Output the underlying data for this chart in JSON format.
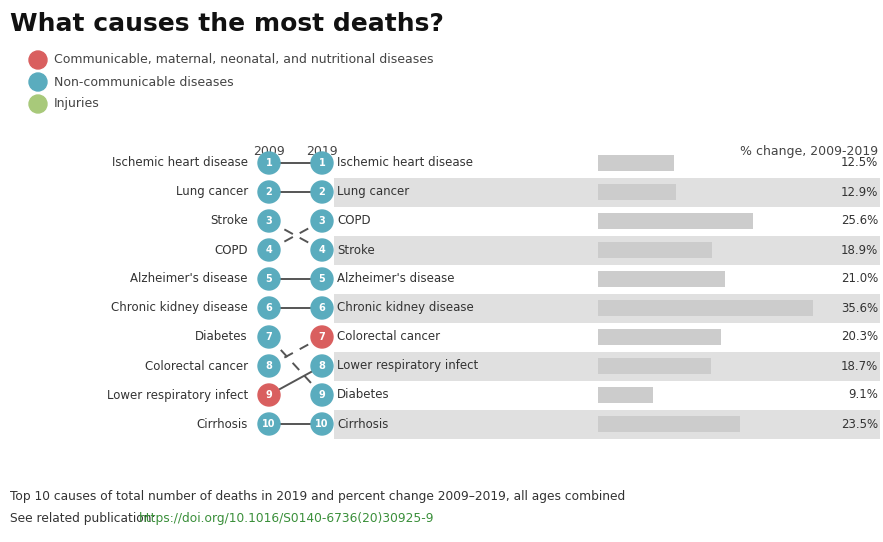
{
  "title": "What causes the most deaths?",
  "legend_items": [
    {
      "label": "Communicable, maternal, neonatal, and nutritional diseases",
      "color": "#d95f5f"
    },
    {
      "label": "Non-communicable diseases",
      "color": "#5aacbe"
    },
    {
      "label": "Injuries",
      "color": "#a8c97a"
    }
  ],
  "col_header_2009": "2009",
  "col_header_2019": "2019",
  "col_header_pct": "% change, 2009-2019",
  "left_labels_2009": [
    "Ischemic heart disease",
    "Lung cancer",
    "Stroke",
    "COPD",
    "Alzheimer's disease",
    "Chronic kidney disease",
    "Diabetes",
    "Colorectal cancer",
    "Lower respiratory infect",
    "Cirrhosis"
  ],
  "right_labels_2019": [
    "Ischemic heart disease",
    "Lung cancer",
    "COPD",
    "Stroke",
    "Alzheimer's disease",
    "Chronic kidney disease",
    "Colorectal cancer",
    "Lower respiratory infect",
    "Diabetes",
    "Cirrhosis"
  ],
  "pct_changes": [
    12.5,
    12.9,
    25.6,
    18.9,
    21.0,
    35.6,
    20.3,
    18.7,
    9.1,
    23.5
  ],
  "pct_labels": [
    "12.5%",
    "12.9%",
    "25.6%",
    "18.9%",
    "21.0%",
    "35.6%",
    "20.3%",
    "18.7%",
    "9.1%",
    "23.5%"
  ],
  "bubble_colors_2009": [
    "#5aacbe",
    "#5aacbe",
    "#5aacbe",
    "#5aacbe",
    "#5aacbe",
    "#5aacbe",
    "#5aacbe",
    "#5aacbe",
    "#d95f5f",
    "#5aacbe"
  ],
  "bubble_colors_2019": [
    "#5aacbe",
    "#5aacbe",
    "#5aacbe",
    "#5aacbe",
    "#5aacbe",
    "#5aacbe",
    "#5aacbe",
    "#d95f5f",
    "#5aacbe",
    "#5aacbe"
  ],
  "connections": [
    [
      0,
      0,
      "solid"
    ],
    [
      1,
      1,
      "solid"
    ],
    [
      2,
      3,
      "dashed"
    ],
    [
      3,
      2,
      "dashed"
    ],
    [
      4,
      4,
      "solid"
    ],
    [
      5,
      5,
      "solid"
    ],
    [
      6,
      8,
      "dashed"
    ],
    [
      7,
      6,
      "dashed"
    ],
    [
      8,
      7,
      "solid"
    ],
    [
      9,
      9,
      "solid"
    ]
  ],
  "pct_bar_color": "#cccccc",
  "pct_max": 40.0,
  "footnote_line1": "Top 10 causes of total number of deaths in 2019 and percent change 2009–2019, all ages combined",
  "footnote_line2_prefix": "See related publication: ",
  "footnote_link": "https://doi.org/10.1016/S0140-6736(20)30925-9",
  "footnote_link_color": "#3a8f3a",
  "background_color": "#ffffff"
}
